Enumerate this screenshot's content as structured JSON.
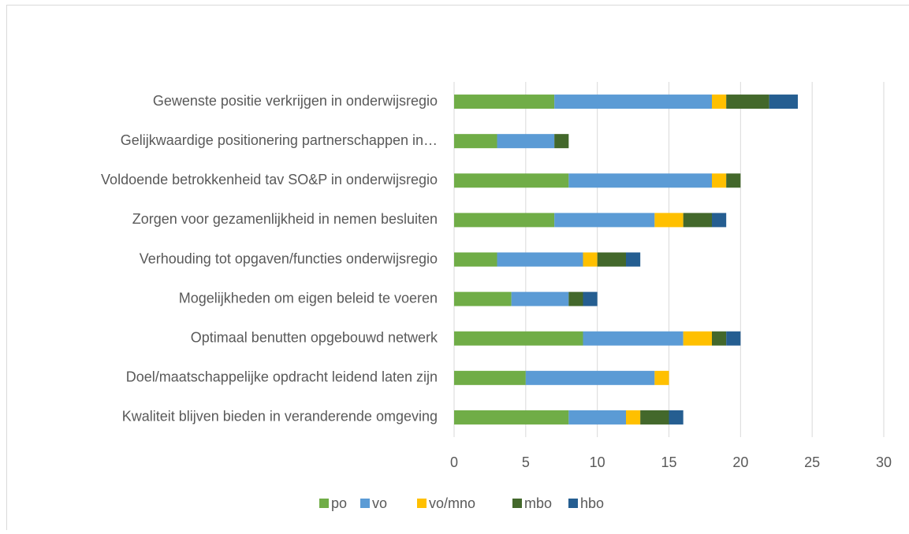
{
  "chart_data": {
    "type": "stacked_bar_horizontal",
    "categories": [
      "Gewenste positie verkrijgen in onderwijsregio",
      "Gelijkwaardige positionering partnerschappen in…",
      "Voldoende betrokkenheid tav SO&P in onderwijsregio",
      "Zorgen voor gezamenlijkheid in nemen besluiten",
      "Verhouding tot opgaven/functies onderwijsregio",
      "Mogelijkheden om eigen beleid te voeren",
      "Optimaal benutten opgebouwd netwerk",
      "Doel/maatschappelijke opdracht leidend laten zijn",
      "Kwaliteit blijven bieden in veranderende omgeving"
    ],
    "series": [
      {
        "name": "po",
        "color": "#70ad47",
        "values": [
          7,
          3,
          8,
          7,
          3,
          4,
          9,
          5,
          8
        ]
      },
      {
        "name": "vo",
        "color": "#5b9bd5",
        "values": [
          11,
          4,
          10,
          7,
          6,
          4,
          7,
          9,
          4
        ]
      },
      {
        "name": "vo/mno",
        "color": "#ffc000",
        "values": [
          1,
          0,
          1,
          2,
          1,
          0,
          2,
          1,
          1
        ]
      },
      {
        "name": "mbo",
        "color": "#43682b",
        "values": [
          3,
          1,
          1,
          2,
          2,
          1,
          1,
          0,
          2
        ]
      },
      {
        "name": "hbo",
        "color": "#255e91",
        "values": [
          2,
          0,
          0,
          1,
          1,
          1,
          1,
          0,
          1
        ]
      }
    ],
    "xlim": [
      0,
      30
    ],
    "xticks": [
      0,
      5,
      10,
      15,
      20,
      25,
      30
    ],
    "grid": true,
    "legend": "bottom"
  }
}
